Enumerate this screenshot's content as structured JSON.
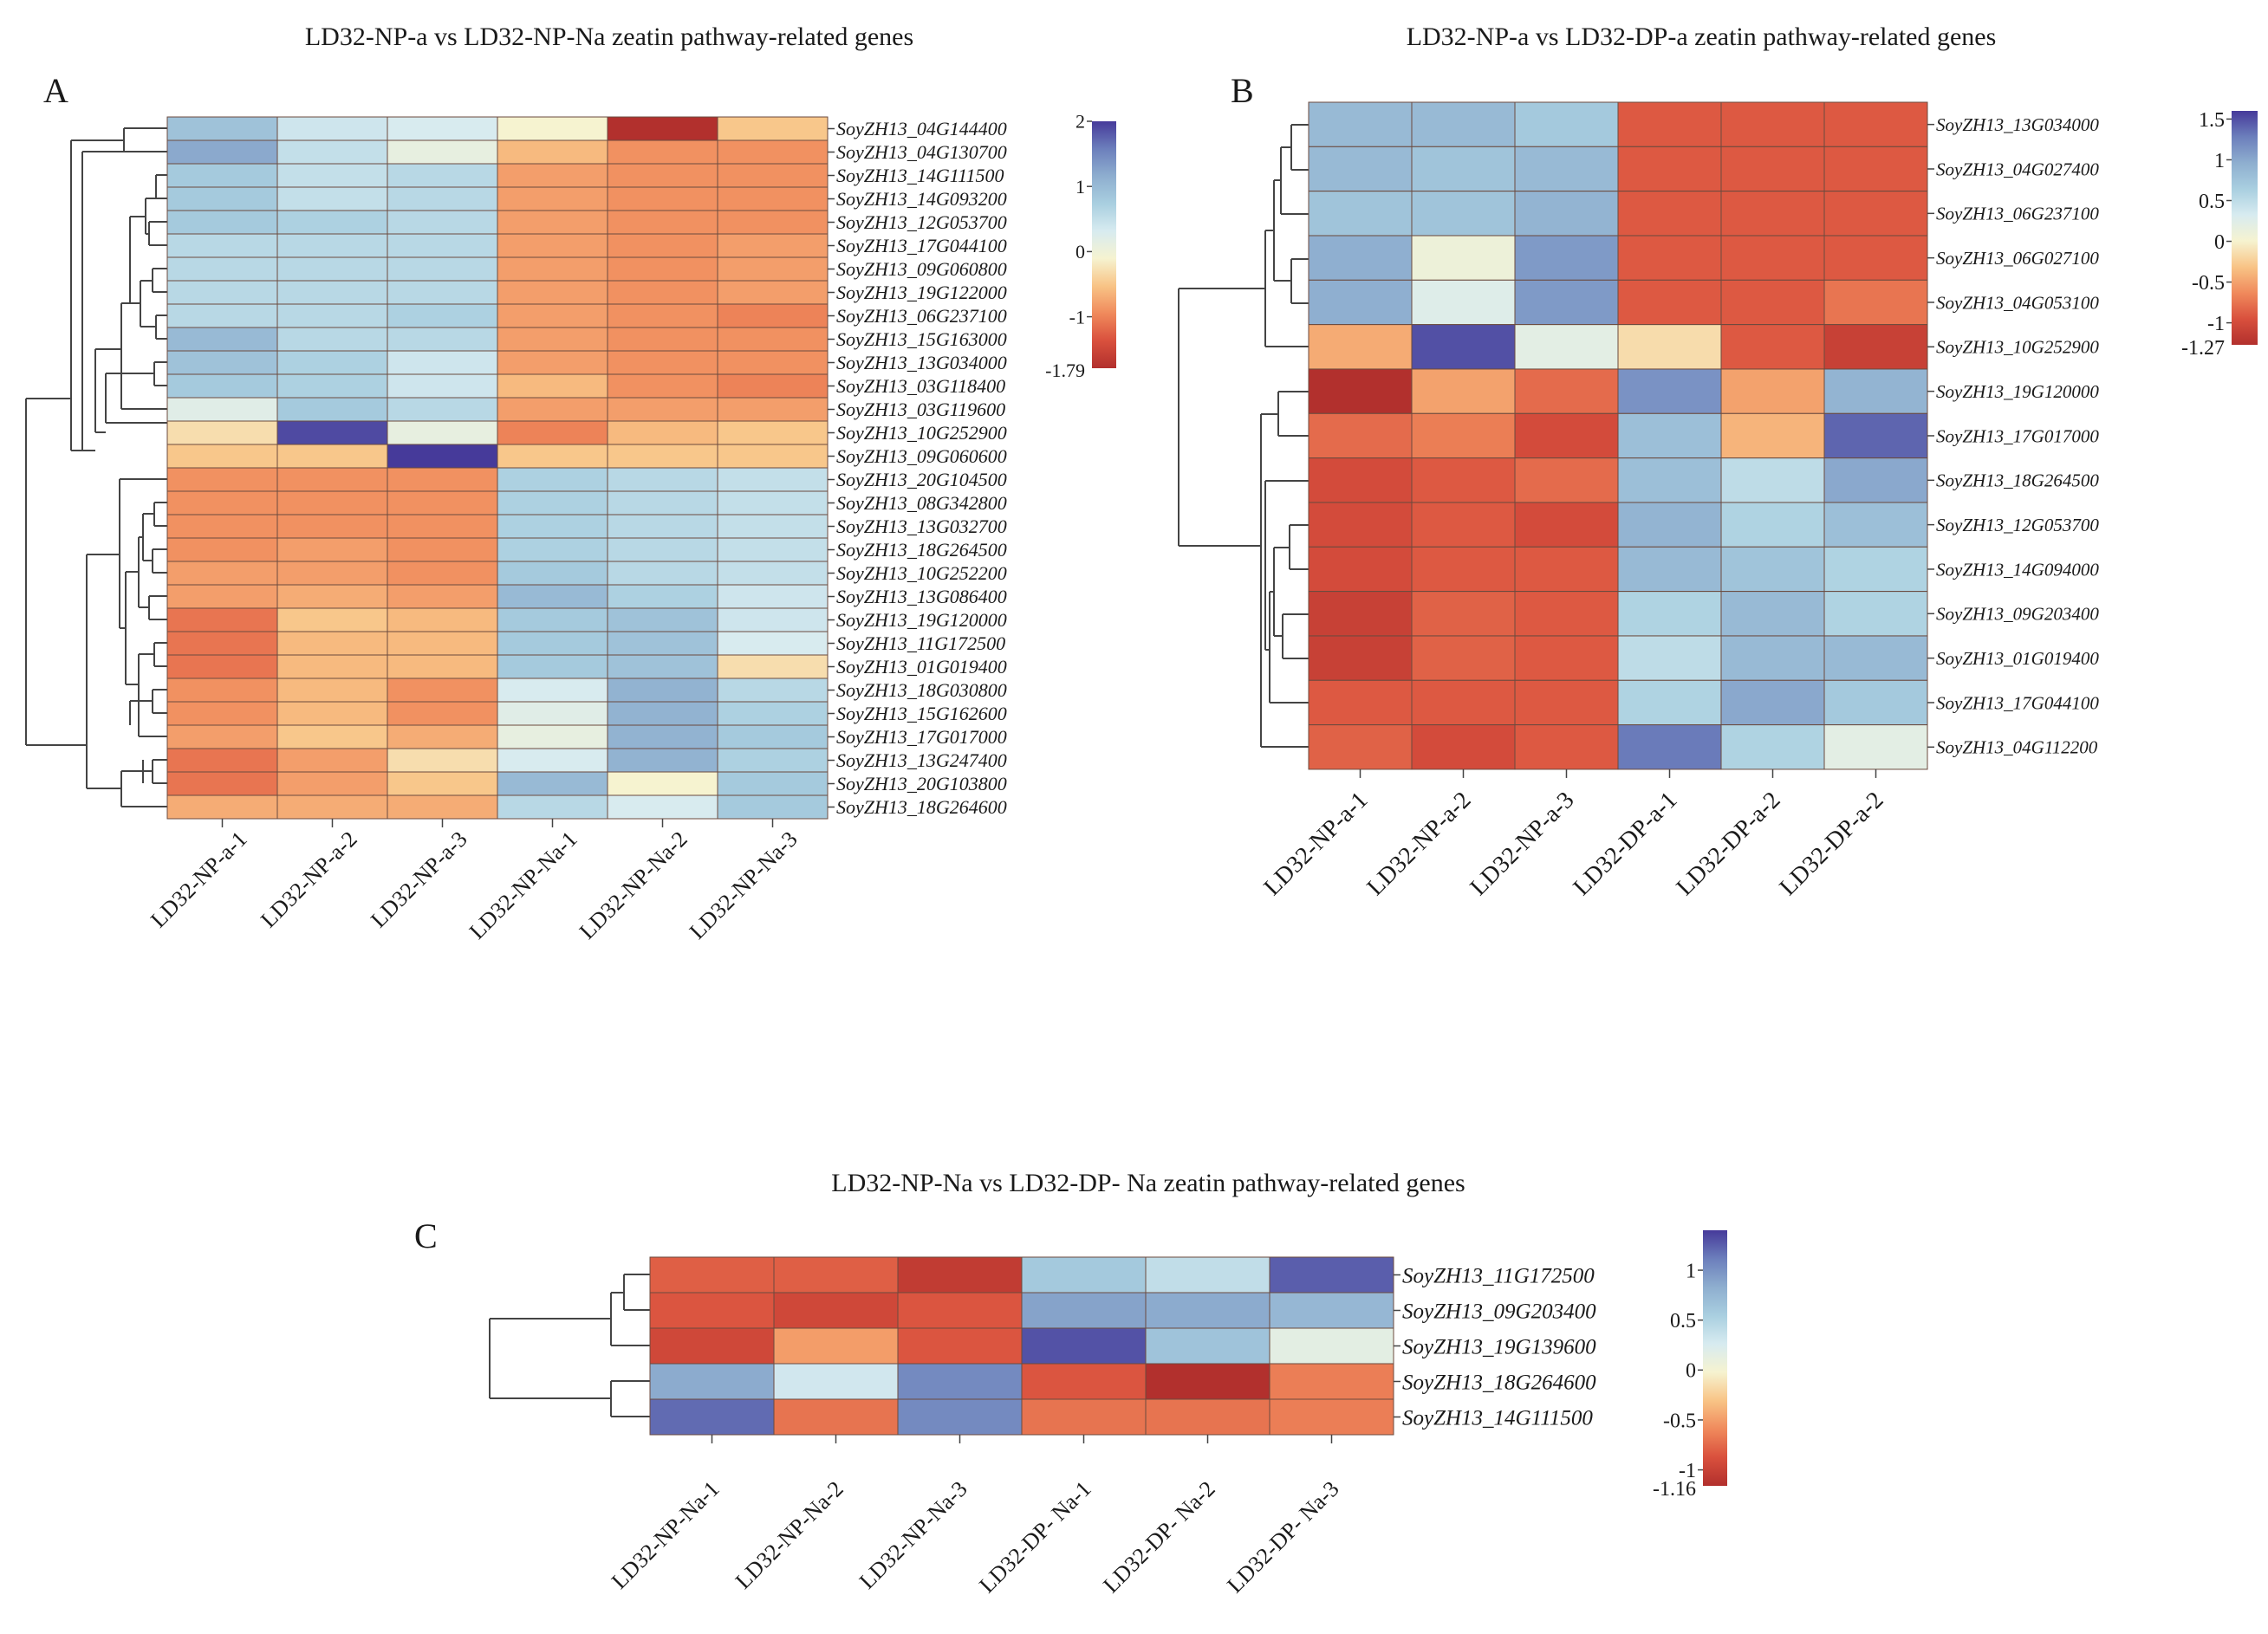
{
  "colors": {
    "scale": [
      "#b2302d",
      "#d9503d",
      "#f08a5c",
      "#f8c486",
      "#f6f3d0",
      "#d7ebf0",
      "#a9cfe0",
      "#8eaecf",
      "#6c7fbc",
      "#463a9a"
    ],
    "cell_border": "#6b4a3e",
    "text": "#1a1a1a",
    "tree": "#444444"
  },
  "chart_data": [
    {
      "panel_label": "A",
      "type": "heatmap",
      "title": "LD32-NP-a vs LD32-NP-Na zeatin pathway-related genes",
      "columns": [
        "LD32-NP-a-1",
        "LD32-NP-a-2",
        "LD32-NP-a-3",
        "LD32-NP-Na-1",
        "LD32-NP-Na-2",
        "LD32-NP-Na-3"
      ],
      "rows": [
        "SoyZH13_04G144400",
        "SoyZH13_04G130700",
        "SoyZH13_14G111500",
        "SoyZH13_14G093200",
        "SoyZH13_12G053700",
        "SoyZH13_17G044100",
        "SoyZH13_09G060800",
        "SoyZH13_19G122000",
        "SoyZH13_06G237100",
        "SoyZH13_15G163000",
        "SoyZH13_13G034000",
        "SoyZH13_03G118400",
        "SoyZH13_03G119600",
        "SoyZH13_10G252900",
        "SoyZH13_09G060600",
        "SoyZH13_20G104500",
        "SoyZH13_08G342800",
        "SoyZH13_13G032700",
        "SoyZH13_18G264500",
        "SoyZH13_10G252200",
        "SoyZH13_13G086400",
        "SoyZH13_19G120000",
        "SoyZH13_11G172500",
        "SoyZH13_01G019400",
        "SoyZH13_18G030800",
        "SoyZH13_15G162600",
        "SoyZH13_17G017000",
        "SoyZH13_13G247400",
        "SoyZH13_20G103800",
        "SoyZH13_18G264600"
      ],
      "values": [
        [
          0.9,
          0.4,
          0.3,
          -0.1,
          -1.79,
          -0.5
        ],
        [
          1.2,
          0.5,
          0.1,
          -0.6,
          -0.9,
          -0.9
        ],
        [
          0.8,
          0.5,
          0.6,
          -0.8,
          -0.9,
          -0.9
        ],
        [
          0.8,
          0.5,
          0.6,
          -0.8,
          -0.9,
          -0.9
        ],
        [
          0.8,
          0.7,
          0.6,
          -0.8,
          -0.9,
          -0.9
        ],
        [
          0.6,
          0.6,
          0.6,
          -0.8,
          -0.9,
          -0.8
        ],
        [
          0.6,
          0.6,
          0.6,
          -0.8,
          -0.9,
          -0.8
        ],
        [
          0.6,
          0.6,
          0.6,
          -0.8,
          -0.9,
          -0.8
        ],
        [
          0.6,
          0.6,
          0.7,
          -0.8,
          -0.9,
          -1.0
        ],
        [
          1.0,
          0.6,
          0.6,
          -0.8,
          -0.9,
          -0.9
        ],
        [
          0.9,
          0.7,
          0.4,
          -0.8,
          -0.9,
          -0.9
        ],
        [
          0.8,
          0.7,
          0.4,
          -0.6,
          -0.9,
          -1.0
        ],
        [
          0.2,
          0.8,
          0.6,
          -0.8,
          -0.8,
          -0.8
        ],
        [
          -0.3,
          1.9,
          0.1,
          -1.0,
          -0.6,
          -0.5
        ],
        [
          -0.5,
          -0.5,
          2.0,
          -0.5,
          -0.5,
          -0.5
        ],
        [
          -0.9,
          -0.9,
          -0.9,
          0.7,
          0.6,
          0.5
        ],
        [
          -0.9,
          -0.9,
          -0.9,
          0.7,
          0.6,
          0.5
        ],
        [
          -0.9,
          -0.9,
          -0.9,
          0.7,
          0.6,
          0.5
        ],
        [
          -0.9,
          -0.8,
          -0.9,
          0.7,
          0.6,
          0.5
        ],
        [
          -0.8,
          -0.8,
          -0.9,
          0.8,
          0.6,
          0.5
        ],
        [
          -0.8,
          -0.7,
          -0.8,
          1.0,
          0.7,
          0.4
        ],
        [
          -1.1,
          -0.5,
          -0.6,
          0.8,
          0.9,
          0.4
        ],
        [
          -1.1,
          -0.6,
          -0.6,
          0.8,
          0.9,
          0.3
        ],
        [
          -1.1,
          -0.6,
          -0.6,
          0.8,
          0.9,
          -0.3
        ],
        [
          -0.9,
          -0.6,
          -0.9,
          0.3,
          1.1,
          0.6
        ],
        [
          -0.9,
          -0.6,
          -0.9,
          0.2,
          1.1,
          0.7
        ],
        [
          -0.8,
          -0.5,
          -0.7,
          0.1,
          1.1,
          0.8
        ],
        [
          -1.1,
          -0.8,
          -0.3,
          0.3,
          1.1,
          0.7
        ],
        [
          -1.1,
          -0.8,
          -0.5,
          1.0,
          -0.1,
          0.8
        ],
        [
          -0.7,
          -0.7,
          -0.7,
          0.6,
          0.3,
          0.8
        ]
      ],
      "colorbar": {
        "min": -1.79,
        "max": 2,
        "ticks": [
          2,
          1,
          0,
          -1
        ],
        "end_label": "-1.79"
      }
    },
    {
      "panel_label": "B",
      "type": "heatmap",
      "title": "LD32-NP-a vs LD32-DP-a zeatin pathway-related genes",
      "columns": [
        "LD32-NP-a-1",
        "LD32-NP-a-2",
        "LD32-NP-a-3",
        "LD32-DP-a-1",
        "LD32-DP-a-2",
        "LD32-DP-a-2"
      ],
      "rows": [
        "SoyZH13_13G034000",
        "SoyZH13_04G027400",
        "SoyZH13_06G237100",
        "SoyZH13_06G027100",
        "SoyZH13_04G053100",
        "SoyZH13_10G252900",
        "SoyZH13_19G120000",
        "SoyZH13_17G017000",
        "SoyZH13_18G264500",
        "SoyZH13_12G053700",
        "SoyZH13_14G094000",
        "SoyZH13_09G203400",
        "SoyZH13_01G019400",
        "SoyZH13_17G044100",
        "SoyZH13_04G112200"
      ],
      "values": [
        [
          0.85,
          0.85,
          0.7,
          -0.9,
          -0.9,
          -0.9
        ],
        [
          0.85,
          0.75,
          0.85,
          -0.9,
          -0.9,
          -0.9
        ],
        [
          0.75,
          0.75,
          0.9,
          -0.9,
          -0.9,
          -0.9
        ],
        [
          0.95,
          0.1,
          1.1,
          -0.9,
          -0.9,
          -0.9
        ],
        [
          0.95,
          0.25,
          1.1,
          -0.9,
          -0.9,
          -0.75
        ],
        [
          -0.45,
          1.5,
          0.2,
          -0.15,
          -0.9,
          -1.1
        ],
        [
          -1.27,
          -0.5,
          -0.8,
          1.15,
          -0.5,
          0.9
        ],
        [
          -0.8,
          -0.7,
          -1.0,
          0.8,
          -0.4,
          1.4
        ],
        [
          -1.0,
          -0.9,
          -0.8,
          0.8,
          0.5,
          1.0
        ],
        [
          -1.0,
          -0.9,
          -1.0,
          0.9,
          0.6,
          0.8
        ],
        [
          -1.0,
          -0.9,
          -0.9,
          0.85,
          0.75,
          0.6
        ],
        [
          -1.1,
          -0.85,
          -0.9,
          0.6,
          0.85,
          0.6
        ],
        [
          -1.1,
          -0.85,
          -0.9,
          0.5,
          0.85,
          0.85
        ],
        [
          -0.9,
          -0.9,
          -0.9,
          0.6,
          1.0,
          0.7
        ],
        [
          -0.85,
          -1.0,
          -0.9,
          1.3,
          0.6,
          0.2
        ]
      ],
      "colorbar": {
        "min": -1.27,
        "max": 1.6,
        "ticks": [
          1.5,
          1,
          0.5,
          0,
          -0.5,
          -1
        ],
        "end_label": "-1.27"
      }
    },
    {
      "panel_label": "C",
      "type": "heatmap",
      "title": "LD32-NP-Na vs LD32-DP- Na zeatin pathway-related genes",
      "columns": [
        "LD32-NP-Na-1",
        "LD32-NP-Na-2",
        "LD32-NP-Na-3",
        "LD32-DP- Na-1",
        "LD32-DP- Na-2",
        "LD32-DP- Na-3"
      ],
      "rows": [
        "SoyZH13_11G172500",
        "SoyZH13_09G203400",
        "SoyZH13_19G139600",
        "SoyZH13_18G264600",
        "SoyZH13_14G111500"
      ],
      "values": [
        [
          -0.8,
          -0.8,
          -1.05,
          0.6,
          0.4,
          1.25
        ],
        [
          -0.85,
          -0.95,
          -0.85,
          0.9,
          0.85,
          0.75
        ],
        [
          -0.95,
          -0.5,
          -0.85,
          1.3,
          0.65,
          0.15
        ],
        [
          0.85,
          0.3,
          1.05,
          -0.85,
          -1.16,
          -0.65
        ],
        [
          1.2,
          -0.7,
          1.05,
          -0.7,
          -0.7,
          -0.65
        ]
      ],
      "colorbar": {
        "min": -1.16,
        "max": 1.4,
        "ticks": [
          1,
          0.5,
          0,
          -0.5,
          -1
        ],
        "end_label": "-1.16"
      }
    }
  ]
}
